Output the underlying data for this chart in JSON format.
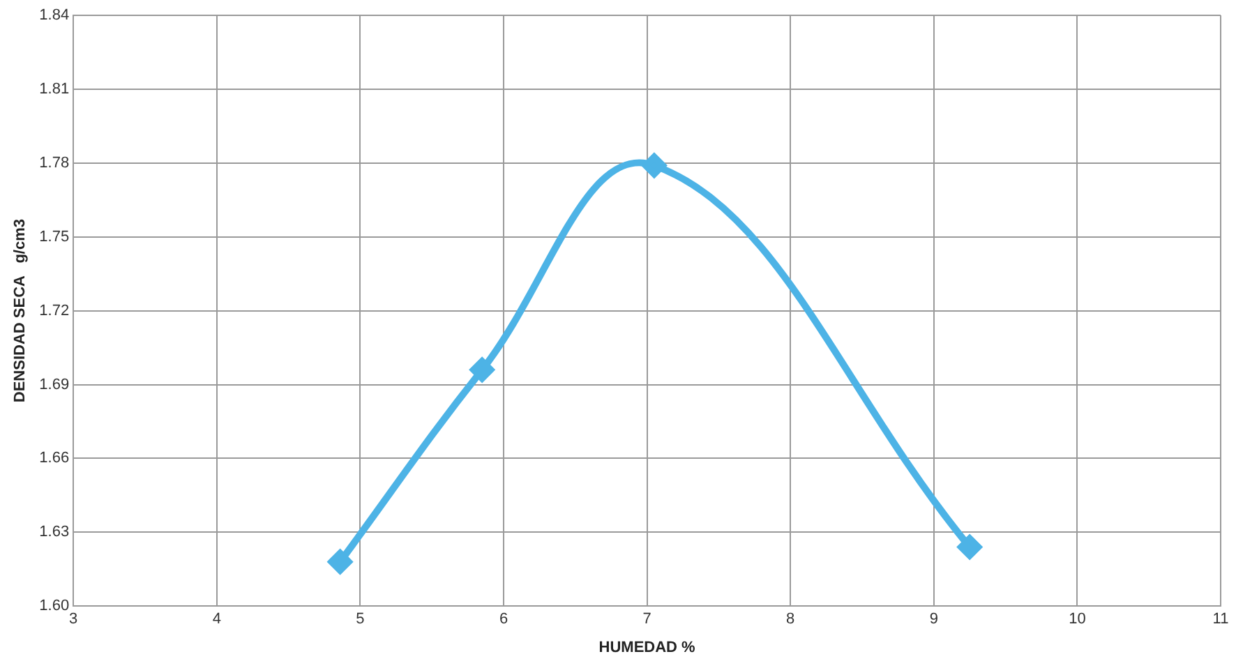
{
  "chart_data": {
    "type": "line",
    "xlabel": "HUMEDAD %",
    "ylabel": "DENSIDAD SECA   g/cm3",
    "x": [
      4.86,
      5.85,
      7.05,
      9.25
    ],
    "series": [
      {
        "color": "#4db3e6",
        "values": [
          1.618,
          1.696,
          1.779,
          1.624
        ]
      }
    ],
    "xlim": [
      3,
      11
    ],
    "xticks": [
      3,
      4,
      5,
      6,
      7,
      8,
      9,
      10,
      11
    ],
    "ylim": [
      1.6,
      1.84
    ],
    "yticks": [
      {
        "value": 1.6,
        "label": "1.60"
      },
      {
        "value": 1.63,
        "label": "1.63"
      },
      {
        "value": 1.66,
        "label": "1.66"
      },
      {
        "value": 1.69,
        "label": "1.69"
      },
      {
        "value": 1.72,
        "label": "1.72"
      },
      {
        "value": 1.75,
        "label": "1.75"
      },
      {
        "value": 1.78,
        "label": "1.78"
      },
      {
        "value": 1.81,
        "label": "1.81"
      },
      {
        "value": 1.84,
        "label": "1.84"
      }
    ],
    "grid": true,
    "marker": "diamond",
    "line_style": "solid",
    "legend": false
  }
}
